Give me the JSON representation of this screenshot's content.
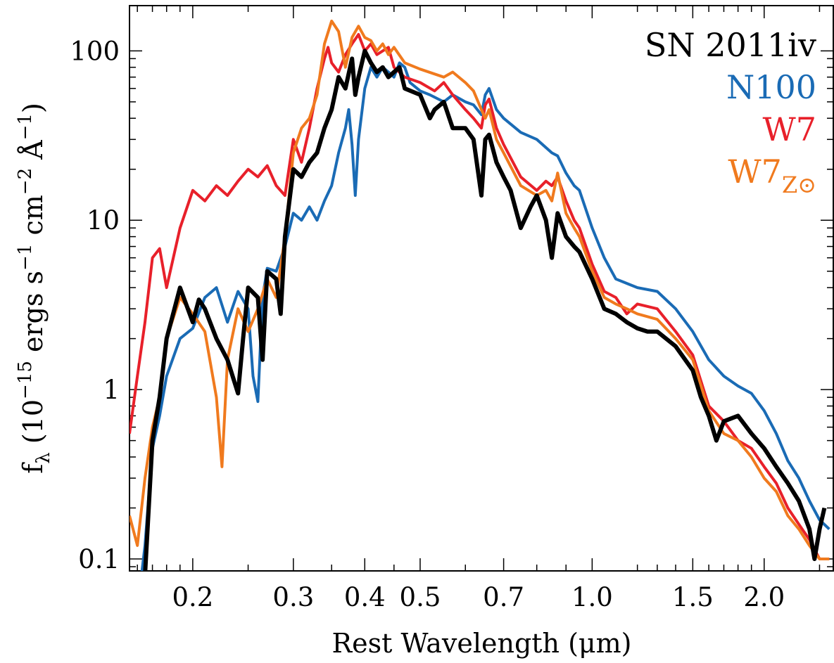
{
  "chart_data": {
    "type": "line",
    "title": "",
    "xlabel": "Rest Wavelength (μm)",
    "ylabel": {
      "base": "f",
      "sub": "λ",
      "text_a": " (10",
      "exp_a": "−15",
      "text_b": " ergs s",
      "exp_b": "−1",
      "text_c": " cm",
      "exp_c": "−2",
      "text_d": " Å",
      "exp_d": "−1",
      "text_e": ")"
    },
    "x_scale": "log",
    "y_scale": "log",
    "xlim": [
      0.155,
      2.65
    ],
    "ylim": [
      0.085,
      185
    ],
    "x_ticks": [
      {
        "value": 0.2,
        "label": "0.2"
      },
      {
        "value": 0.3,
        "label": "0.3"
      },
      {
        "value": 0.4,
        "label": "0.4"
      },
      {
        "value": 0.5,
        "label": "0.5"
      },
      {
        "value": 0.7,
        "label": "0.7"
      },
      {
        "value": 1.0,
        "label": "1.0"
      },
      {
        "value": 1.5,
        "label": "1.5"
      },
      {
        "value": 2.0,
        "label": "2.0"
      }
    ],
    "y_ticks": [
      {
        "value": 0.1,
        "label": "0.1"
      },
      {
        "value": 1,
        "label": "1"
      },
      {
        "value": 10,
        "label": "10"
      },
      {
        "value": 100,
        "label": "100"
      }
    ],
    "legend_position": "top-right",
    "series": [
      {
        "name": "N100",
        "color": "#1a6bb5",
        "points": [
          [
            0.16,
            0.05
          ],
          [
            0.165,
            0.12
          ],
          [
            0.17,
            0.45
          ],
          [
            0.175,
            0.7
          ],
          [
            0.18,
            1.2
          ],
          [
            0.19,
            2.0
          ],
          [
            0.2,
            2.3
          ],
          [
            0.21,
            3.5
          ],
          [
            0.22,
            4.0
          ],
          [
            0.23,
            2.5
          ],
          [
            0.24,
            3.8
          ],
          [
            0.25,
            3.0
          ],
          [
            0.255,
            1.2
          ],
          [
            0.26,
            0.85
          ],
          [
            0.265,
            3.5
          ],
          [
            0.27,
            5.2
          ],
          [
            0.28,
            5.0
          ],
          [
            0.29,
            7.0
          ],
          [
            0.3,
            11
          ],
          [
            0.31,
            10
          ],
          [
            0.32,
            12
          ],
          [
            0.33,
            10
          ],
          [
            0.34,
            13
          ],
          [
            0.35,
            16
          ],
          [
            0.36,
            25
          ],
          [
            0.37,
            35
          ],
          [
            0.375,
            45
          ],
          [
            0.38,
            28
          ],
          [
            0.385,
            14
          ],
          [
            0.39,
            30
          ],
          [
            0.4,
            60
          ],
          [
            0.41,
            80
          ],
          [
            0.42,
            70
          ],
          [
            0.43,
            80
          ],
          [
            0.44,
            75
          ],
          [
            0.45,
            70
          ],
          [
            0.46,
            85
          ],
          [
            0.47,
            80
          ],
          [
            0.48,
            65
          ],
          [
            0.5,
            58
          ],
          [
            0.52,
            55
          ],
          [
            0.55,
            50
          ],
          [
            0.57,
            55
          ],
          [
            0.6,
            50
          ],
          [
            0.62,
            48
          ],
          [
            0.64,
            42
          ],
          [
            0.65,
            55
          ],
          [
            0.66,
            60
          ],
          [
            0.68,
            45
          ],
          [
            0.7,
            40
          ],
          [
            0.75,
            33
          ],
          [
            0.8,
            30
          ],
          [
            0.85,
            25
          ],
          [
            0.87,
            24
          ],
          [
            0.9,
            19
          ],
          [
            0.93,
            16
          ],
          [
            0.95,
            15
          ],
          [
            1.0,
            9
          ],
          [
            1.05,
            6
          ],
          [
            1.1,
            4.5
          ],
          [
            1.2,
            4.0
          ],
          [
            1.3,
            3.8
          ],
          [
            1.4,
            3.0
          ],
          [
            1.5,
            2.2
          ],
          [
            1.6,
            1.5
          ],
          [
            1.7,
            1.2
          ],
          [
            1.8,
            1.05
          ],
          [
            1.9,
            0.95
          ],
          [
            2.0,
            0.75
          ],
          [
            2.1,
            0.55
          ],
          [
            2.2,
            0.38
          ],
          [
            2.3,
            0.3
          ],
          [
            2.4,
            0.22
          ],
          [
            2.5,
            0.17
          ],
          [
            2.6,
            0.15
          ]
        ]
      },
      {
        "name": "W7",
        "color": "#e8202a",
        "points": [
          [
            0.155,
            0.55
          ],
          [
            0.16,
            1.2
          ],
          [
            0.165,
            2.5
          ],
          [
            0.17,
            6.0
          ],
          [
            0.175,
            6.8
          ],
          [
            0.18,
            4.0
          ],
          [
            0.19,
            9.0
          ],
          [
            0.2,
            15
          ],
          [
            0.21,
            13
          ],
          [
            0.22,
            16
          ],
          [
            0.23,
            14
          ],
          [
            0.24,
            17
          ],
          [
            0.25,
            20
          ],
          [
            0.26,
            18
          ],
          [
            0.27,
            21
          ],
          [
            0.28,
            16
          ],
          [
            0.29,
            14
          ],
          [
            0.3,
            30
          ],
          [
            0.31,
            22
          ],
          [
            0.32,
            35
          ],
          [
            0.33,
            60
          ],
          [
            0.34,
            90
          ],
          [
            0.345,
            105
          ],
          [
            0.35,
            85
          ],
          [
            0.36,
            75
          ],
          [
            0.37,
            95
          ],
          [
            0.38,
            110
          ],
          [
            0.39,
            125
          ],
          [
            0.4,
            100
          ],
          [
            0.41,
            110
          ],
          [
            0.42,
            95
          ],
          [
            0.43,
            100
          ],
          [
            0.44,
            105
          ],
          [
            0.45,
            80
          ],
          [
            0.47,
            70
          ],
          [
            0.5,
            65
          ],
          [
            0.53,
            58
          ],
          [
            0.55,
            65
          ],
          [
            0.57,
            55
          ],
          [
            0.6,
            45
          ],
          [
            0.62,
            40
          ],
          [
            0.64,
            35
          ],
          [
            0.65,
            48
          ],
          [
            0.66,
            52
          ],
          [
            0.68,
            35
          ],
          [
            0.7,
            28
          ],
          [
            0.75,
            18
          ],
          [
            0.8,
            15
          ],
          [
            0.83,
            17
          ],
          [
            0.85,
            16
          ],
          [
            0.87,
            18
          ],
          [
            0.9,
            13
          ],
          [
            0.93,
            10
          ],
          [
            0.95,
            9
          ],
          [
            1.0,
            5.5
          ],
          [
            1.05,
            3.8
          ],
          [
            1.1,
            3.5
          ],
          [
            1.15,
            2.8
          ],
          [
            1.2,
            3.2
          ],
          [
            1.3,
            3.0
          ],
          [
            1.4,
            2.2
          ],
          [
            1.5,
            1.6
          ],
          [
            1.6,
            0.8
          ],
          [
            1.7,
            0.65
          ],
          [
            1.8,
            0.5
          ],
          [
            1.9,
            0.45
          ],
          [
            2.0,
            0.35
          ],
          [
            2.1,
            0.28
          ],
          [
            2.2,
            0.2
          ],
          [
            2.3,
            0.16
          ],
          [
            2.4,
            0.13
          ],
          [
            2.5,
            0.1
          ],
          [
            2.6,
            0.1
          ]
        ]
      },
      {
        "name": "W7",
        "name_sub": "Z⊙",
        "color": "#f07a1e",
        "points": [
          [
            0.155,
            0.18
          ],
          [
            0.16,
            0.12
          ],
          [
            0.165,
            0.3
          ],
          [
            0.17,
            0.6
          ],
          [
            0.175,
            0.9
          ],
          [
            0.18,
            2.0
          ],
          [
            0.19,
            3.5
          ],
          [
            0.2,
            2.8
          ],
          [
            0.21,
            2.2
          ],
          [
            0.22,
            0.9
          ],
          [
            0.225,
            0.35
          ],
          [
            0.23,
            1.5
          ],
          [
            0.24,
            3.0
          ],
          [
            0.25,
            2.2
          ],
          [
            0.26,
            3.0
          ],
          [
            0.27,
            4.5
          ],
          [
            0.28,
            3.5
          ],
          [
            0.29,
            8.0
          ],
          [
            0.3,
            25
          ],
          [
            0.31,
            35
          ],
          [
            0.32,
            40
          ],
          [
            0.33,
            55
          ],
          [
            0.34,
            110
          ],
          [
            0.35,
            150
          ],
          [
            0.36,
            130
          ],
          [
            0.37,
            80
          ],
          [
            0.38,
            120
          ],
          [
            0.39,
            140
          ],
          [
            0.4,
            120
          ],
          [
            0.41,
            115
          ],
          [
            0.42,
            100
          ],
          [
            0.43,
            110
          ],
          [
            0.44,
            95
          ],
          [
            0.45,
            105
          ],
          [
            0.47,
            85
          ],
          [
            0.5,
            78
          ],
          [
            0.55,
            70
          ],
          [
            0.57,
            75
          ],
          [
            0.6,
            65
          ],
          [
            0.62,
            58
          ],
          [
            0.64,
            45
          ],
          [
            0.65,
            40
          ],
          [
            0.66,
            45
          ],
          [
            0.68,
            30
          ],
          [
            0.7,
            25
          ],
          [
            0.75,
            16
          ],
          [
            0.8,
            14
          ],
          [
            0.83,
            15
          ],
          [
            0.85,
            13
          ],
          [
            0.87,
            19
          ],
          [
            0.9,
            11
          ],
          [
            0.93,
            9
          ],
          [
            0.95,
            8
          ],
          [
            1.0,
            5.0
          ],
          [
            1.05,
            3.5
          ],
          [
            1.1,
            3.2
          ],
          [
            1.15,
            3.0
          ],
          [
            1.2,
            2.8
          ],
          [
            1.3,
            2.6
          ],
          [
            1.4,
            2.0
          ],
          [
            1.5,
            1.5
          ],
          [
            1.6,
            0.75
          ],
          [
            1.7,
            0.55
          ],
          [
            1.8,
            0.5
          ],
          [
            1.9,
            0.4
          ],
          [
            2.0,
            0.3
          ],
          [
            2.1,
            0.25
          ],
          [
            2.2,
            0.18
          ],
          [
            2.3,
            0.15
          ],
          [
            2.4,
            0.12
          ],
          [
            2.5,
            0.1
          ],
          [
            2.6,
            0.1
          ]
        ]
      },
      {
        "name": "SN 2011iv",
        "color": "#000000",
        "points": [
          [
            0.165,
            0.08
          ],
          [
            0.17,
            0.5
          ],
          [
            0.175,
            0.9
          ],
          [
            0.18,
            2.0
          ],
          [
            0.19,
            4.0
          ],
          [
            0.2,
            2.5
          ],
          [
            0.205,
            3.4
          ],
          [
            0.21,
            3.0
          ],
          [
            0.22,
            2.0
          ],
          [
            0.23,
            1.5
          ],
          [
            0.24,
            0.95
          ],
          [
            0.245,
            2.0
          ],
          [
            0.25,
            4.0
          ],
          [
            0.26,
            3.5
          ],
          [
            0.265,
            1.5
          ],
          [
            0.27,
            5.0
          ],
          [
            0.28,
            4.5
          ],
          [
            0.285,
            2.8
          ],
          [
            0.29,
            8.0
          ],
          [
            0.3,
            20
          ],
          [
            0.31,
            18
          ],
          [
            0.32,
            22
          ],
          [
            0.33,
            25
          ],
          [
            0.34,
            35
          ],
          [
            0.35,
            45
          ],
          [
            0.36,
            70
          ],
          [
            0.37,
            60
          ],
          [
            0.38,
            90
          ],
          [
            0.385,
            55
          ],
          [
            0.39,
            70
          ],
          [
            0.4,
            100
          ],
          [
            0.41,
            85
          ],
          [
            0.42,
            75
          ],
          [
            0.43,
            80
          ],
          [
            0.44,
            70
          ],
          [
            0.45,
            75
          ],
          [
            0.46,
            80
          ],
          [
            0.47,
            60
          ],
          [
            0.5,
            55
          ],
          [
            0.52,
            40
          ],
          [
            0.53,
            45
          ],
          [
            0.55,
            50
          ],
          [
            0.57,
            35
          ],
          [
            0.6,
            35
          ],
          [
            0.62,
            30
          ],
          [
            0.64,
            14
          ],
          [
            0.65,
            30
          ],
          [
            0.66,
            32
          ],
          [
            0.68,
            22
          ],
          [
            0.7,
            18
          ],
          [
            0.72,
            15
          ],
          [
            0.75,
            9
          ],
          [
            0.78,
            12
          ],
          [
            0.8,
            14
          ],
          [
            0.83,
            10
          ],
          [
            0.85,
            6.0
          ],
          [
            0.87,
            11
          ],
          [
            0.9,
            8.0
          ],
          [
            0.93,
            7.0
          ],
          [
            0.95,
            6.5
          ],
          [
            1.0,
            4.5
          ],
          [
            1.05,
            3.0
          ],
          [
            1.1,
            2.8
          ],
          [
            1.15,
            2.5
          ],
          [
            1.2,
            2.3
          ],
          [
            1.25,
            2.2
          ],
          [
            1.3,
            2.2
          ],
          [
            1.4,
            1.8
          ],
          [
            1.5,
            1.3
          ],
          [
            1.55,
            0.9
          ],
          [
            1.6,
            0.7
          ],
          [
            1.65,
            0.5
          ],
          [
            1.7,
            0.65
          ],
          [
            1.8,
            0.7
          ],
          [
            1.9,
            0.55
          ],
          [
            2.0,
            0.45
          ],
          [
            2.1,
            0.35
          ],
          [
            2.2,
            0.28
          ],
          [
            2.3,
            0.22
          ],
          [
            2.4,
            0.15
          ],
          [
            2.45,
            0.1
          ],
          [
            2.5,
            0.15
          ],
          [
            2.55,
            0.2
          ]
        ]
      }
    ]
  }
}
